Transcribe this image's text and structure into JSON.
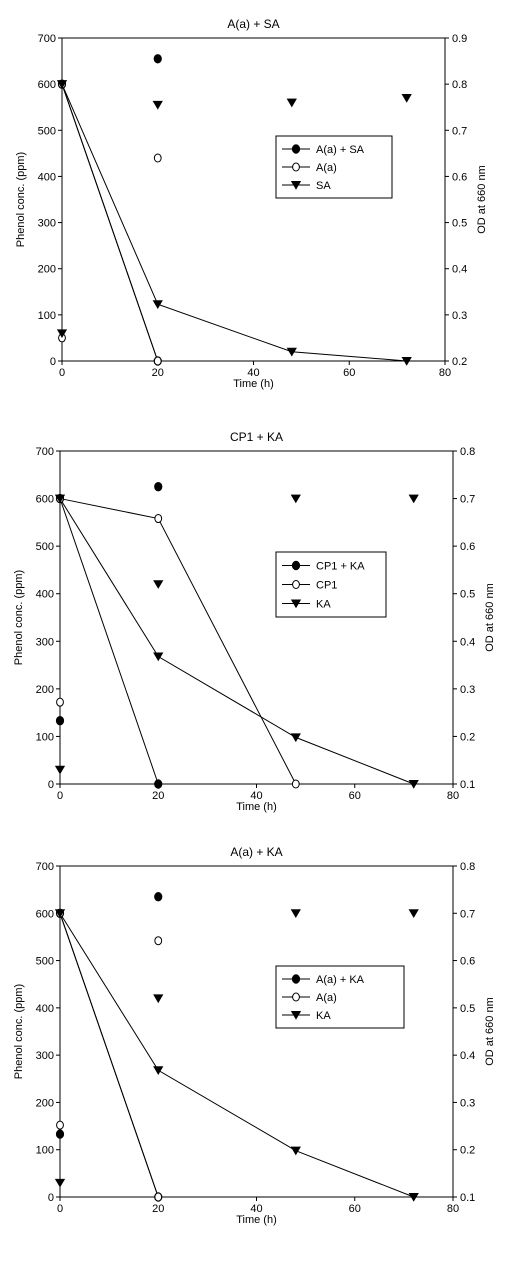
{
  "chart_data": [
    {
      "type": "scatter",
      "title": "A(a) + SA",
      "xlabel": "Time (h)",
      "ylabel": "Phenol conc. (ppm)",
      "y2label": "OD at 660 nm",
      "xlim": [
        0,
        80
      ],
      "ylim": [
        0,
        700
      ],
      "y2lim": [
        0.2,
        0.9
      ],
      "xticks": [
        0,
        20,
        40,
        60,
        80
      ],
      "yticks": [
        0,
        100,
        200,
        300,
        400,
        500,
        600,
        700
      ],
      "y2ticks": [
        0.2,
        0.3,
        0.4,
        0.5,
        0.6,
        0.7,
        0.8,
        0.9
      ],
      "legend_position": "center-right",
      "series": [
        {
          "name": "A(a) + SA",
          "marker": "filled-circle",
          "axis": "left",
          "line": true,
          "x": [
            0,
            20
          ],
          "y": [
            600,
            0
          ]
        },
        {
          "name": "A(a)",
          "marker": "open-circle",
          "axis": "left",
          "line": true,
          "x": [
            0,
            20
          ],
          "y": [
            600,
            0
          ]
        },
        {
          "name": "SA",
          "marker": "filled-triangle",
          "axis": "left",
          "line": true,
          "x": [
            0,
            20,
            48,
            72
          ],
          "y": [
            600,
            123,
            20,
            0
          ]
        },
        {
          "name": "",
          "marker": "filled-circle",
          "axis": "right",
          "line": false,
          "x": [
            20
          ],
          "y": [
            0.855
          ]
        },
        {
          "name": "",
          "marker": "open-circle",
          "axis": "right",
          "line": false,
          "x": [
            0,
            20
          ],
          "y": [
            0.25,
            0.64
          ]
        },
        {
          "name": "",
          "marker": "filled-triangle",
          "axis": "right",
          "line": false,
          "x": [
            0,
            20,
            48,
            72
          ],
          "y": [
            0.26,
            0.755,
            0.76,
            0.77
          ]
        }
      ]
    },
    {
      "type": "scatter",
      "title": "CP1 + KA",
      "xlabel": "Time (h)",
      "ylabel": "Phenol conc. (ppm)",
      "y2label": "OD at 660 nm",
      "xlim": [
        0,
        80
      ],
      "ylim": [
        0,
        700
      ],
      "y2lim": [
        0.1,
        0.8
      ],
      "xticks": [
        0,
        20,
        40,
        60,
        80
      ],
      "yticks": [
        0,
        100,
        200,
        300,
        400,
        500,
        600,
        700
      ],
      "y2ticks": [
        0.1,
        0.2,
        0.3,
        0.4,
        0.5,
        0.6,
        0.7,
        0.8
      ],
      "legend_position": "center-right",
      "series": [
        {
          "name": "CP1 + KA",
          "marker": "filled-circle",
          "axis": "left",
          "line": true,
          "x": [
            0,
            20
          ],
          "y": [
            600,
            0
          ]
        },
        {
          "name": "CP1",
          "marker": "open-circle",
          "axis": "left",
          "line": true,
          "x": [
            0,
            20,
            48
          ],
          "y": [
            600,
            558,
            0
          ]
        },
        {
          "name": "KA",
          "marker": "filled-triangle",
          "axis": "left",
          "line": true,
          "x": [
            0,
            20,
            48,
            72
          ],
          "y": [
            600,
            268,
            98,
            0
          ]
        },
        {
          "name": "",
          "marker": "filled-circle",
          "axis": "right",
          "line": false,
          "x": [
            0,
            20
          ],
          "y": [
            0.233,
            0.725
          ]
        },
        {
          "name": "",
          "marker": "open-circle",
          "axis": "right",
          "line": false,
          "x": [
            0
          ],
          "y": [
            0.272
          ]
        },
        {
          "name": "",
          "marker": "filled-triangle",
          "axis": "right",
          "line": false,
          "x": [
            0,
            20,
            48,
            72
          ],
          "y": [
            0.13,
            0.52,
            0.7,
            0.7
          ]
        }
      ]
    },
    {
      "type": "scatter",
      "title": "A(a) + KA",
      "xlabel": "Time (h)",
      "ylabel": "Phenol conc. (ppm)",
      "y2label": "OD at 660 nm",
      "xlim": [
        0,
        80
      ],
      "ylim": [
        0,
        700
      ],
      "y2lim": [
        0.1,
        0.8
      ],
      "xticks": [
        0,
        20,
        40,
        60,
        80
      ],
      "yticks": [
        0,
        100,
        200,
        300,
        400,
        500,
        600,
        700
      ],
      "y2ticks": [
        0.1,
        0.2,
        0.3,
        0.4,
        0.5,
        0.6,
        0.7,
        0.8
      ],
      "legend_position": "center-right",
      "series": [
        {
          "name": "A(a) + KA",
          "marker": "filled-circle",
          "axis": "left",
          "line": true,
          "x": [
            0,
            20
          ],
          "y": [
            600,
            0
          ]
        },
        {
          "name": "A(a)",
          "marker": "open-circle",
          "axis": "left",
          "line": true,
          "x": [
            0,
            20
          ],
          "y": [
            600,
            0
          ]
        },
        {
          "name": "KA",
          "marker": "filled-triangle",
          "axis": "left",
          "line": true,
          "x": [
            0,
            20,
            48,
            72
          ],
          "y": [
            600,
            268,
            98,
            0
          ]
        },
        {
          "name": "",
          "marker": "filled-circle",
          "axis": "right",
          "line": false,
          "x": [
            0,
            20
          ],
          "y": [
            0.233,
            0.735
          ]
        },
        {
          "name": "",
          "marker": "open-circle",
          "axis": "right",
          "line": false,
          "x": [
            0,
            20
          ],
          "y": [
            0.252,
            0.642
          ]
        },
        {
          "name": "",
          "marker": "filled-triangle",
          "axis": "right",
          "line": false,
          "x": [
            0,
            20,
            48,
            72
          ],
          "y": [
            0.13,
            0.52,
            0.7,
            0.7
          ]
        }
      ]
    }
  ]
}
